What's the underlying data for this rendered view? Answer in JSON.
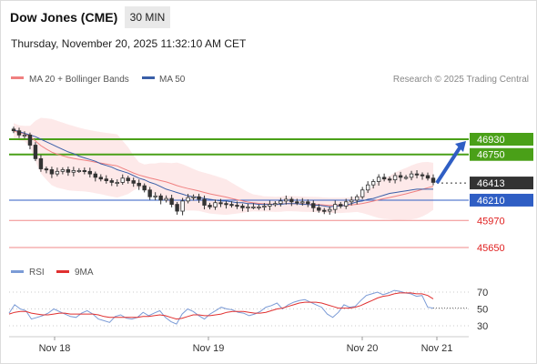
{
  "header": {
    "title": "Dow Jones (CME)",
    "timeframe": "30 MIN"
  },
  "datetime": "Thursday, November 20, 2025 11:32:10 AM CET",
  "legend": {
    "ma20": "MA 20 + Bollinger Bands",
    "ma50": "MA 50",
    "copyright": "Research © 2025 Trading Central"
  },
  "rsi_legend": {
    "rsi": "RSI",
    "ma9": "9MA"
  },
  "colors": {
    "ma20": "#f08080",
    "ma50": "#3a5fa8",
    "resistance": "#4aa018",
    "support": "#f08a8a",
    "current": "#333333",
    "pivot": "#2f5ec4",
    "arrow": "#2f5ec4",
    "band": "#fde3e3",
    "rsi": "#7b9bd6",
    "ma9": "#e03030"
  },
  "chart_data": [
    {
      "type": "candlestick",
      "x_axis": {
        "labels": [
          "Nov 18",
          "Nov 19",
          "Nov 20",
          "Nov 21"
        ]
      },
      "levels": [
        {
          "label": "46930",
          "value": 46930,
          "kind": "resistance"
        },
        {
          "label": "46750",
          "value": 46750,
          "kind": "resistance"
        },
        {
          "label": "46413",
          "value": 46413,
          "kind": "current"
        },
        {
          "label": "46210",
          "value": 46210,
          "kind": "pivot"
        },
        {
          "label": "45970",
          "value": 45970,
          "kind": "support"
        },
        {
          "label": "45650",
          "value": 45650,
          "kind": "support"
        }
      ],
      "close_series": [
        47030,
        46980,
        46980,
        46860,
        46700,
        46580,
        46570,
        46520,
        46550,
        46570,
        46540,
        46560,
        46560,
        46550,
        46520,
        46480,
        46460,
        46440,
        46420,
        46420,
        46470,
        46440,
        46410,
        46380,
        46330,
        46250,
        46260,
        46210,
        46230,
        46160,
        46080,
        46200,
        46240,
        46250,
        46220,
        46150,
        46130,
        46180,
        46170,
        46160,
        46150,
        46140,
        46120,
        46130,
        46130,
        46130,
        46140,
        46160,
        46170,
        46200,
        46220,
        46190,
        46180,
        46190,
        46170,
        46120,
        46090,
        46080,
        46100,
        46160,
        46140,
        46190,
        46210,
        46250,
        46330,
        46390,
        46430,
        46480,
        46460,
        46450,
        46500,
        46480,
        46480,
        46520,
        46510,
        46500,
        46470,
        46420
      ],
      "ma50": [
        47040,
        47020,
        47000,
        46980,
        46960,
        46930,
        46900,
        46870,
        46840,
        46810,
        46780,
        46760,
        46730,
        46710,
        46690,
        46670,
        46640,
        46620,
        46600,
        46570,
        46550,
        46530,
        46500,
        46470,
        46450,
        46420,
        46400,
        46370,
        46340,
        46320,
        46300,
        46280,
        46260,
        46250,
        46240,
        46230,
        46220,
        46210,
        46200,
        46200,
        46190,
        46180,
        46180,
        46170,
        46170,
        46160,
        46160,
        46160,
        46160,
        46160,
        46170,
        46170,
        46170,
        46160,
        46160,
        46150,
        46150,
        46140,
        46130,
        46140,
        46140,
        46150,
        46170,
        46190,
        46200,
        46220,
        46230,
        46250,
        46270,
        46290,
        46300,
        46310,
        46320,
        46330,
        46340,
        46340,
        46340,
        46340
      ],
      "forecast_arrow": {
        "from": 46413,
        "to": 46930
      }
    },
    {
      "type": "line",
      "name": "RSI",
      "y_ticks": [
        70,
        50,
        30
      ],
      "series": [
        {
          "name": "RSI",
          "values": [
            45,
            55,
            50,
            48,
            38,
            40,
            42,
            45,
            50,
            47,
            44,
            41,
            40,
            45,
            48,
            44,
            38,
            36,
            34,
            41,
            43,
            39,
            38,
            40,
            46,
            42,
            45,
            48,
            40,
            35,
            32,
            44,
            50,
            47,
            42,
            38,
            44,
            48,
            52,
            50,
            49,
            46,
            45,
            42,
            44,
            47,
            52,
            54,
            57,
            50,
            55,
            58,
            60,
            61,
            58,
            55,
            52,
            44,
            40,
            46,
            55,
            52,
            53,
            60,
            66,
            68,
            70,
            67,
            69,
            72,
            71,
            69,
            68,
            65,
            66,
            52,
            51
          ]
        },
        {
          "name": "9MA",
          "values": [
            44,
            46,
            47,
            47,
            45,
            44,
            43,
            43,
            44,
            45,
            45,
            44,
            44,
            44,
            44,
            44,
            43,
            41,
            40,
            40,
            40,
            40,
            40,
            40,
            41,
            41,
            42,
            43,
            42,
            40,
            38,
            39,
            41,
            43,
            43,
            42,
            42,
            43,
            44,
            46,
            47,
            47,
            47,
            46,
            45,
            45,
            46,
            48,
            50,
            51,
            53,
            55,
            57,
            58,
            58,
            58,
            57,
            55,
            53,
            51,
            51,
            51,
            52,
            54,
            57,
            60,
            63,
            65,
            66,
            68,
            69,
            69,
            69,
            68,
            68,
            66,
            62
          ]
        }
      ]
    }
  ]
}
